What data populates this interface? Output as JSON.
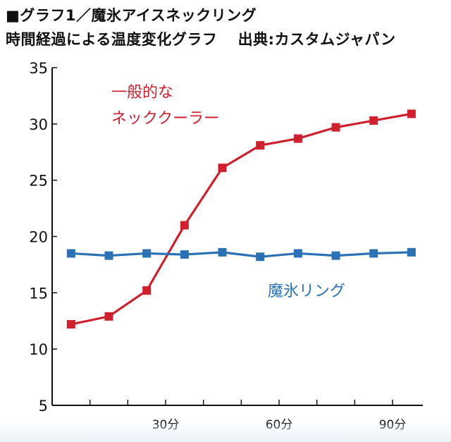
{
  "header": {
    "line1": "■グラフ1／魔氷アイスネックリング",
    "line2": "時間経過による温度変化グラフ　 出典:カスタムジャパン"
  },
  "chart_data": {
    "type": "line",
    "x": [
      5,
      15,
      25,
      35,
      45,
      55,
      65,
      75,
      85,
      95
    ],
    "x_ticks": [
      {
        "value": 30,
        "label": "30分"
      },
      {
        "value": 60,
        "label": "60分"
      },
      {
        "value": 90,
        "label": "90分"
      }
    ],
    "y_ticks": [
      5,
      10,
      15,
      20,
      25,
      30,
      35
    ],
    "ylim": [
      5,
      35
    ],
    "xlim": [
      0,
      98
    ],
    "grid": false,
    "series": [
      {
        "name": "一般的な ネッククーラー",
        "label_lines": [
          "一般的な",
          "ネッククーラー"
        ],
        "color": "#d0202e",
        "values": [
          12.2,
          12.9,
          15.2,
          21.0,
          26.1,
          28.1,
          28.7,
          29.7,
          30.3,
          30.9
        ]
      },
      {
        "name": "魔氷リング",
        "label_lines": [
          "魔氷リング"
        ],
        "color": "#2a72b5",
        "values": [
          18.5,
          18.3,
          18.5,
          18.4,
          18.6,
          18.2,
          18.5,
          18.3,
          18.5,
          18.6
        ]
      }
    ]
  }
}
